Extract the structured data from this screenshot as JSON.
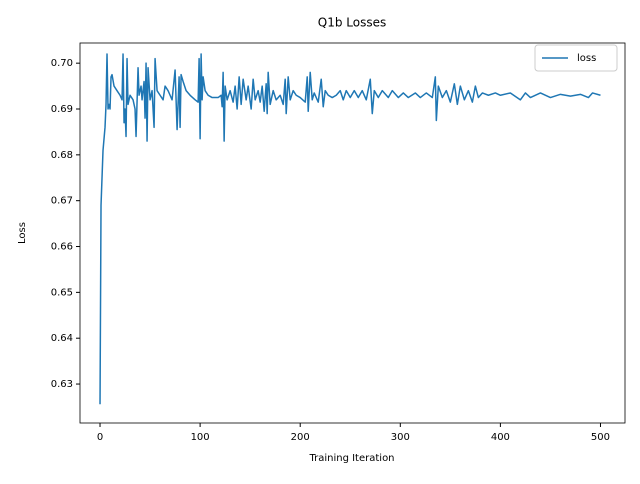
{
  "chart_data": {
    "type": "line",
    "title": "Q1b Losses",
    "x_label": "Training Iteration",
    "y_label": "Loss",
    "x": [
      0,
      1,
      2,
      3,
      5,
      6,
      7,
      8,
      9,
      10,
      11,
      12,
      14,
      17,
      20,
      22,
      23,
      24,
      25,
      26,
      27,
      28,
      30,
      33,
      35,
      36,
      38,
      39,
      41,
      42,
      44,
      45,
      46,
      47,
      48,
      50,
      52,
      54,
      55,
      57,
      60,
      63,
      65,
      68,
      70,
      72,
      75,
      77,
      79,
      80,
      81,
      83,
      86,
      90,
      95,
      98,
      99,
      100,
      101,
      102,
      103,
      105,
      108,
      112,
      118,
      121,
      122,
      123,
      124,
      125,
      127,
      130,
      133,
      135,
      137,
      139,
      141,
      143,
      146,
      148,
      151,
      153,
      155,
      158,
      160,
      162,
      164,
      166,
      167,
      168,
      170,
      173,
      176,
      180,
      183,
      185,
      186,
      188,
      190,
      193,
      196,
      200,
      205,
      207,
      208,
      210,
      212,
      214,
      218,
      221,
      223,
      225,
      228,
      232,
      236,
      240,
      243,
      246,
      250,
      254,
      258,
      262,
      266,
      270,
      272,
      274,
      278,
      282,
      288,
      292,
      298,
      303,
      308,
      315,
      320,
      326,
      332,
      335,
      336,
      338,
      342,
      346,
      350,
      354,
      357,
      360,
      364,
      368,
      372,
      375,
      378,
      382,
      388,
      395,
      400,
      410,
      420,
      425,
      430,
      440,
      450,
      460,
      470,
      480,
      488,
      492,
      500
    ],
    "series": [
      {
        "name": "loss",
        "color": "#1f77b4",
        "values": [
          0.6256,
          0.669,
          0.675,
          0.681,
          0.686,
          0.691,
          0.702,
          0.69,
          0.691,
          0.69,
          0.697,
          0.6975,
          0.695,
          0.694,
          0.693,
          0.692,
          0.702,
          0.687,
          0.69,
          0.684,
          0.701,
          0.691,
          0.693,
          0.692,
          0.69,
          0.684,
          0.699,
          0.693,
          0.695,
          0.692,
          0.696,
          0.688,
          0.7,
          0.683,
          0.699,
          0.692,
          0.694,
          0.686,
          0.701,
          0.694,
          0.693,
          0.692,
          0.695,
          0.694,
          0.693,
          0.692,
          0.6985,
          0.6855,
          0.697,
          0.686,
          0.6975,
          0.696,
          0.694,
          0.693,
          0.692,
          0.6915,
          0.701,
          0.6835,
          0.702,
          0.692,
          0.697,
          0.694,
          0.693,
          0.6925,
          0.6925,
          0.693,
          0.6905,
          0.698,
          0.683,
          0.695,
          0.692,
          0.694,
          0.6915,
          0.695,
          0.69,
          0.697,
          0.691,
          0.6965,
          0.692,
          0.695,
          0.69,
          0.6965,
          0.692,
          0.694,
          0.6915,
          0.695,
          0.6895,
          0.6955,
          0.689,
          0.698,
          0.691,
          0.694,
          0.692,
          0.693,
          0.691,
          0.6965,
          0.689,
          0.697,
          0.692,
          0.694,
          0.693,
          0.6925,
          0.6915,
          0.697,
          0.6895,
          0.698,
          0.692,
          0.6935,
          0.6915,
          0.6965,
          0.6905,
          0.694,
          0.693,
          0.6925,
          0.693,
          0.694,
          0.692,
          0.694,
          0.6925,
          0.694,
          0.6925,
          0.694,
          0.692,
          0.6965,
          0.689,
          0.694,
          0.6925,
          0.694,
          0.6925,
          0.694,
          0.6925,
          0.6935,
          0.6925,
          0.6935,
          0.6925,
          0.6935,
          0.6925,
          0.697,
          0.6875,
          0.695,
          0.6925,
          0.694,
          0.6915,
          0.6955,
          0.691,
          0.695,
          0.692,
          0.694,
          0.6915,
          0.695,
          0.6925,
          0.6935,
          0.693,
          0.6935,
          0.693,
          0.6935,
          0.692,
          0.6935,
          0.6925,
          0.6935,
          0.6925,
          0.6932,
          0.6928,
          0.6932,
          0.6925,
          0.6935,
          0.693
        ]
      }
    ],
    "xlim": [
      -20,
      524.5
    ],
    "ylim": [
      0.6215,
      0.7044
    ],
    "xticks": [
      0,
      100,
      200,
      300,
      400,
      500
    ],
    "yticks": [
      0.63,
      0.64,
      0.65,
      0.66,
      0.67,
      0.68,
      0.69,
      {
        "value": 0.7,
        "label": "0.70"
      }
    ],
    "legend_position": "upper right"
  }
}
